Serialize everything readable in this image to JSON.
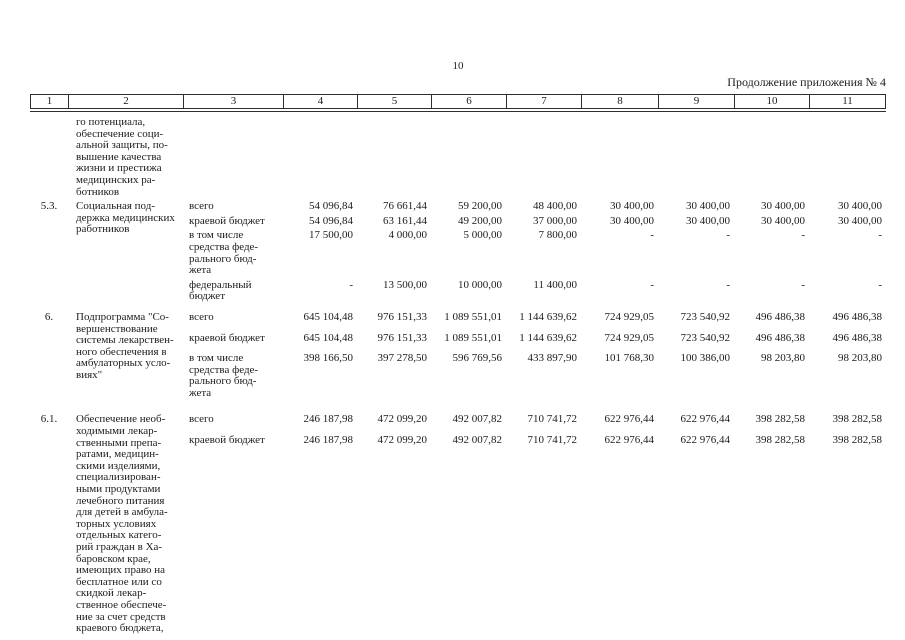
{
  "page": {
    "number": "10",
    "continuation": "Продолжение приложения № 4"
  },
  "table": {
    "column_numbers": [
      "1",
      "2",
      "3",
      "4",
      "5",
      "6",
      "7",
      "8",
      "9",
      "10",
      "11"
    ],
    "rows": [
      {
        "num": "",
        "name_lines": [
          "го потенциала,",
          "обеспечение соци-",
          "альной защиты, по-",
          "вышение качества",
          "жизни и престижа",
          "медицинских ра-",
          "ботников"
        ],
        "entries": []
      },
      {
        "num": "5.3.",
        "name_lines": [
          "Социальная под-",
          "держка медицинских",
          "работников"
        ],
        "entries": [
          {
            "label_lines": [
              "всего"
            ],
            "values": [
              "54 096,84",
              "76 661,44",
              "59 200,00",
              "48 400,00",
              "30 400,00",
              "30 400,00",
              "30 400,00",
              "30 400,00"
            ]
          },
          {
            "label_lines": [
              "краевой бюджет"
            ],
            "values": [
              "54 096,84",
              "63 161,44",
              "49 200,00",
              "37 000,00",
              "30 400,00",
              "30 400,00",
              "30 400,00",
              "30 400,00"
            ]
          },
          {
            "label_lines": [
              "в том числе",
              "средства феде-",
              "рального бюд-",
              "жета"
            ],
            "values": [
              "17 500,00",
              "4 000,00",
              "5 000,00",
              "7 800,00",
              "-",
              "-",
              "-",
              "-"
            ]
          },
          {
            "label_lines": [
              "федеральный",
              "бюджет"
            ],
            "values": [
              "-",
              "13 500,00",
              "10 000,00",
              "11 400,00",
              "-",
              "-",
              "-",
              "-"
            ]
          }
        ]
      },
      {
        "num": "6.",
        "name_lines": [
          "Подпрограмма \"Со-",
          "вершенствование",
          "системы лекарствен-",
          "ного обеспечения в",
          "амбулаторных усло-",
          "виях\""
        ],
        "entries": [
          {
            "label_lines": [
              "всего"
            ],
            "values": [
              "645 104,48",
              "976 151,33",
              "1 089 551,01",
              "1 144 639,62",
              "724 929,05",
              "723 540,92",
              "496 486,38",
              "496 486,38"
            ]
          },
          {
            "label_lines": [
              "краевой бюджет"
            ],
            "values": [
              "645 104,48",
              "976 151,33",
              "1 089 551,01",
              "1 144 639,62",
              "724 929,05",
              "723 540,92",
              "496 486,38",
              "496 486,38"
            ]
          },
          {
            "label_lines": [
              "в том числе",
              "средства феде-",
              "рального бюд-",
              "жета"
            ],
            "values": [
              "398 166,50",
              "397 278,50",
              "596 769,56",
              "433 897,90",
              "101 768,30",
              "100 386,00",
              "98 203,80",
              "98 203,80"
            ]
          }
        ]
      },
      {
        "num": "6.1.",
        "name_lines": [
          "Обеспечение необ-",
          "ходимыми лекар-",
          "ственными препа-",
          "ратами, медицин-",
          "скими изделиями,",
          "специализирован-",
          "ными продуктами",
          "лечебного питания",
          "для детей в амбула-",
          "торных условиях",
          "отдельных катего-",
          "рий граждан в Ха-",
          "баровском крае,",
          "имеющих право на",
          "бесплатное или со",
          "скидкой лекар-",
          "ственное обеспече-",
          "ние за счет средств",
          "краевого бюджета,"
        ],
        "entries": [
          {
            "label_lines": [
              "всего"
            ],
            "values": [
              "246 187,98",
              "472 099,20",
              "492 007,82",
              "710 741,72",
              "622 976,44",
              "622 976,44",
              "398 282,58",
              "398 282,58"
            ]
          },
          {
            "label_lines": [
              "краевой бюджет"
            ],
            "values": [
              "246 187,98",
              "472 099,20",
              "492 007,82",
              "710 741,72",
              "622 976,44",
              "622 976,44",
              "398 282,58",
              "398 282,58"
            ]
          }
        ]
      }
    ]
  }
}
